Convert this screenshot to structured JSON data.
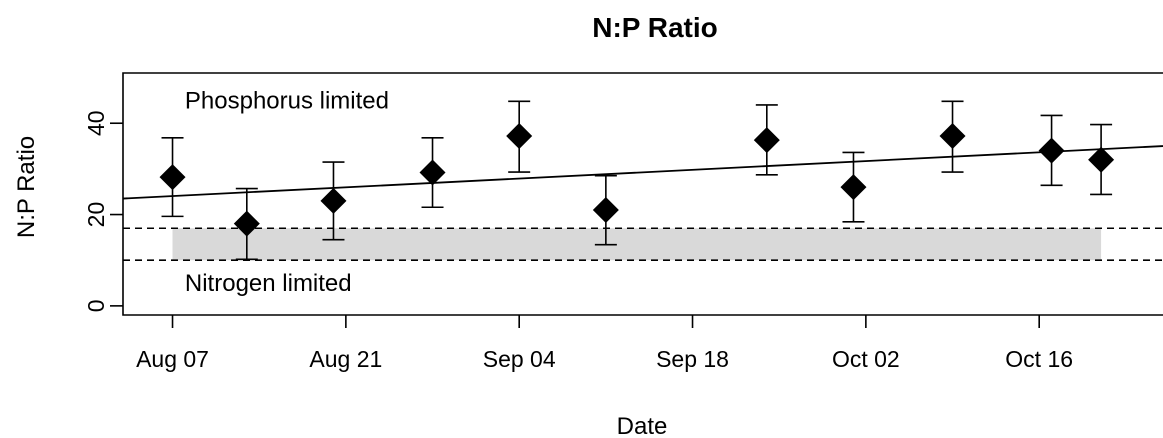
{
  "chart_data": {
    "type": "scatter",
    "title": "N:P Ratio",
    "xlabel": "Date",
    "ylabel": "N:P Ratio",
    "x_tick_labels": [
      "Aug 07",
      "Aug 21",
      "Sep 04",
      "Sep 18",
      "Oct 02",
      "Oct 16"
    ],
    "x_tick_dates": [
      "2019-08-07",
      "2019-08-21",
      "2019-09-04",
      "2019-09-18",
      "2019-10-02",
      "2019-10-16"
    ],
    "y_ticks": [
      0,
      20,
      40
    ],
    "y_tick_labels": [
      "0",
      "20",
      "40"
    ],
    "xlim": [
      "2019-08-03",
      "2019-10-26"
    ],
    "ylim": [
      -2,
      51
    ],
    "grid": false,
    "points": [
      {
        "date": "2019-08-07",
        "y": 28.2,
        "err_low": 19.6,
        "err_high": 36.8
      },
      {
        "date": "2019-08-13",
        "y": 18.0,
        "err_low": 10.2,
        "err_high": 25.7
      },
      {
        "date": "2019-08-20",
        "y": 23.0,
        "err_low": 14.5,
        "err_high": 31.5
      },
      {
        "date": "2019-08-28",
        "y": 29.2,
        "err_low": 21.6,
        "err_high": 36.8
      },
      {
        "date": "2019-09-04",
        "y": 37.2,
        "err_low": 29.3,
        "err_high": 44.8
      },
      {
        "date": "2019-09-11",
        "y": 21.0,
        "err_low": 13.4,
        "err_high": 28.5
      },
      {
        "date": "2019-09-24",
        "y": 36.3,
        "err_low": 28.7,
        "err_high": 44.0
      },
      {
        "date": "2019-10-01",
        "y": 26.0,
        "err_low": 18.4,
        "err_high": 33.6
      },
      {
        "date": "2019-10-09",
        "y": 37.2,
        "err_low": 29.3,
        "err_high": 44.8
      },
      {
        "date": "2019-10-17",
        "y": 34.0,
        "err_low": 26.4,
        "err_high": 41.7
      },
      {
        "date": "2019-10-21",
        "y": 32.0,
        "err_low": 24.4,
        "err_high": 39.7
      }
    ],
    "trend_line": {
      "x_start": "2019-08-03",
      "y_start": 23.5,
      "x_end": "2019-10-26",
      "y_end": 35.0
    },
    "reference_lines": [
      17,
      10
    ],
    "shaded_band": {
      "x_start": "2019-08-07",
      "x_end": "2019-10-21",
      "y_low": 10,
      "y_high": 17,
      "color": "#d9d9d9"
    },
    "annotations": [
      {
        "text": "Phosphorus limited",
        "date": "2019-08-08",
        "y": 45
      },
      {
        "text": "Nitrogen limited",
        "date": "2019-08-08",
        "y": 5
      }
    ],
    "colors": {
      "marker": "#000000",
      "line": "#000000",
      "band": "#d9d9d9"
    }
  }
}
